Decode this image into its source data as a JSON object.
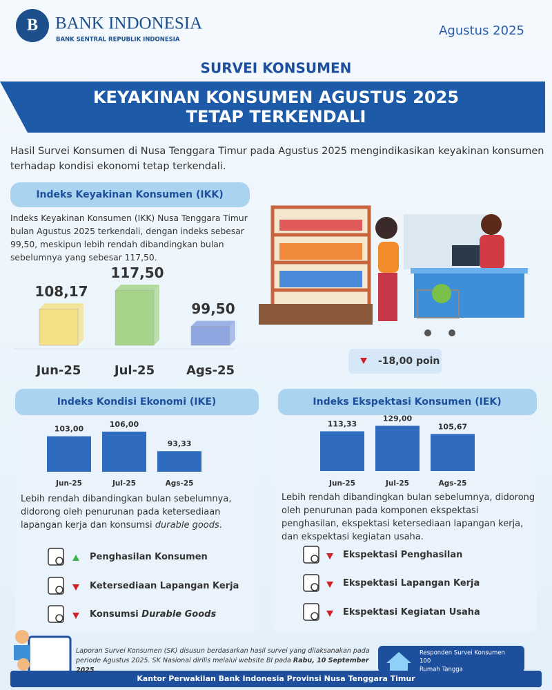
{
  "header": {
    "logo_name": "BANK INDONESIA",
    "logo_sub": "BANK SENTRAL REPUBLIK INDONESIA",
    "date": "Agustus 2025",
    "section": "SURVEI KONSUMEN",
    "title_lines": [
      "KEYAKINAN KONSUMEN AGUSTUS 2025",
      "TETAP TERKENDALI"
    ]
  },
  "intro": "Hasil Survei Konsumen di Nusa Tenggara Timur pada Agustus 2025 mengindikasikan keyakinan konsumen terhadap kondisi ekonomi tetap terkendali.",
  "ikk": {
    "description": "Indeks Keyakinan Konsumen (IKK) Nusa Tenggara Timur bulan Agustus 2025 terkendali, dengan indeks sebesar 99,50, meskipun lebih rendah dibandingkan bulan sebelumnya yang sebesar 117,50.",
    "change": "-18,00 poin",
    "change_trend": "down"
  },
  "chart_data": [
    {
      "type": "bar",
      "bar_style": "3d",
      "title": "Indeks Keyakinan Konsumen (IKK)",
      "categories": [
        "Jun-25",
        "Jul-25",
        "Ags-25"
      ],
      "values": [
        108.17,
        117.5,
        99.5
      ],
      "value_labels": [
        "108,17",
        "117,50",
        "99,50"
      ],
      "colors": [
        "#f3df86",
        "#a6d48a",
        "#8fa6e0"
      ],
      "ylim": [
        90,
        120
      ]
    },
    {
      "type": "bar",
      "title": "Indeks Kondisi Ekonomi (IKE)",
      "categories": [
        "Jun-25",
        "Jul-25",
        "Ags-25"
      ],
      "values": [
        103,
        106,
        93.33
      ],
      "value_labels": [
        "103,00",
        "106,00",
        "93,33"
      ],
      "color": "#2f6cbf",
      "ylim": [
        80,
        110
      ]
    },
    {
      "type": "bar",
      "title": "Indeks Ekspektasi Konsumen (IEK)",
      "categories": [
        "Jun-25",
        "Jul-25",
        "Ags-25"
      ],
      "values": [
        113.33,
        129,
        105.67
      ],
      "value_labels": [
        "113,33",
        "129,00",
        "105,67"
      ],
      "color": "#2f6cbf",
      "ylim": [
        0,
        130
      ]
    }
  ],
  "ike": {
    "description": [
      "Lebih rendah dibandingkan bulan sebelumnya, didorong oleh penurunan pada ketersediaan lapangan kerja dan konsumsi ",
      "durable goods",
      "."
    ],
    "items": [
      {
        "label": [
          "Penghasilan Konsumen"
        ],
        "trend": "up"
      },
      {
        "label": [
          "Ketersediaan Lapangan Kerja"
        ],
        "trend": "down"
      },
      {
        "label": [
          "Konsumsi ",
          "Durable Goods"
        ],
        "trend": "down"
      }
    ]
  },
  "iek": {
    "description": [
      "Lebih rendah dibandingkan bulan sebelumnya, didorong oleh penurunan pada komponen ekspektasi penghasilan, ekspektasi ketersediaan lapangan kerja, dan ekspektasi kegiatan usaha."
    ],
    "items": [
      {
        "label": [
          "Ekspektasi Penghasilan"
        ],
        "trend": "down"
      },
      {
        "label": [
          "Ekspektasi Lapangan Kerja"
        ],
        "trend": "down"
      },
      {
        "label": [
          "Ekspektasi Kegiatan Usaha"
        ],
        "trend": "down"
      }
    ]
  },
  "footer": {
    "note": [
      "Laporan Survei Konsumen (SK) disusun berdasarkan hasil survei yang dilaksanakan pada periode Agustus 2025. SK Nasional dirilis melalui website BI pada ",
      "Rabu, 10 September 2025",
      "."
    ],
    "respondents": [
      "Responden Survei Konsumen",
      "100",
      "Rumah Tangga"
    ],
    "office": "Kantor Perwakilan Bank Indonesia Provinsi Nusa Tenggara Timur"
  }
}
